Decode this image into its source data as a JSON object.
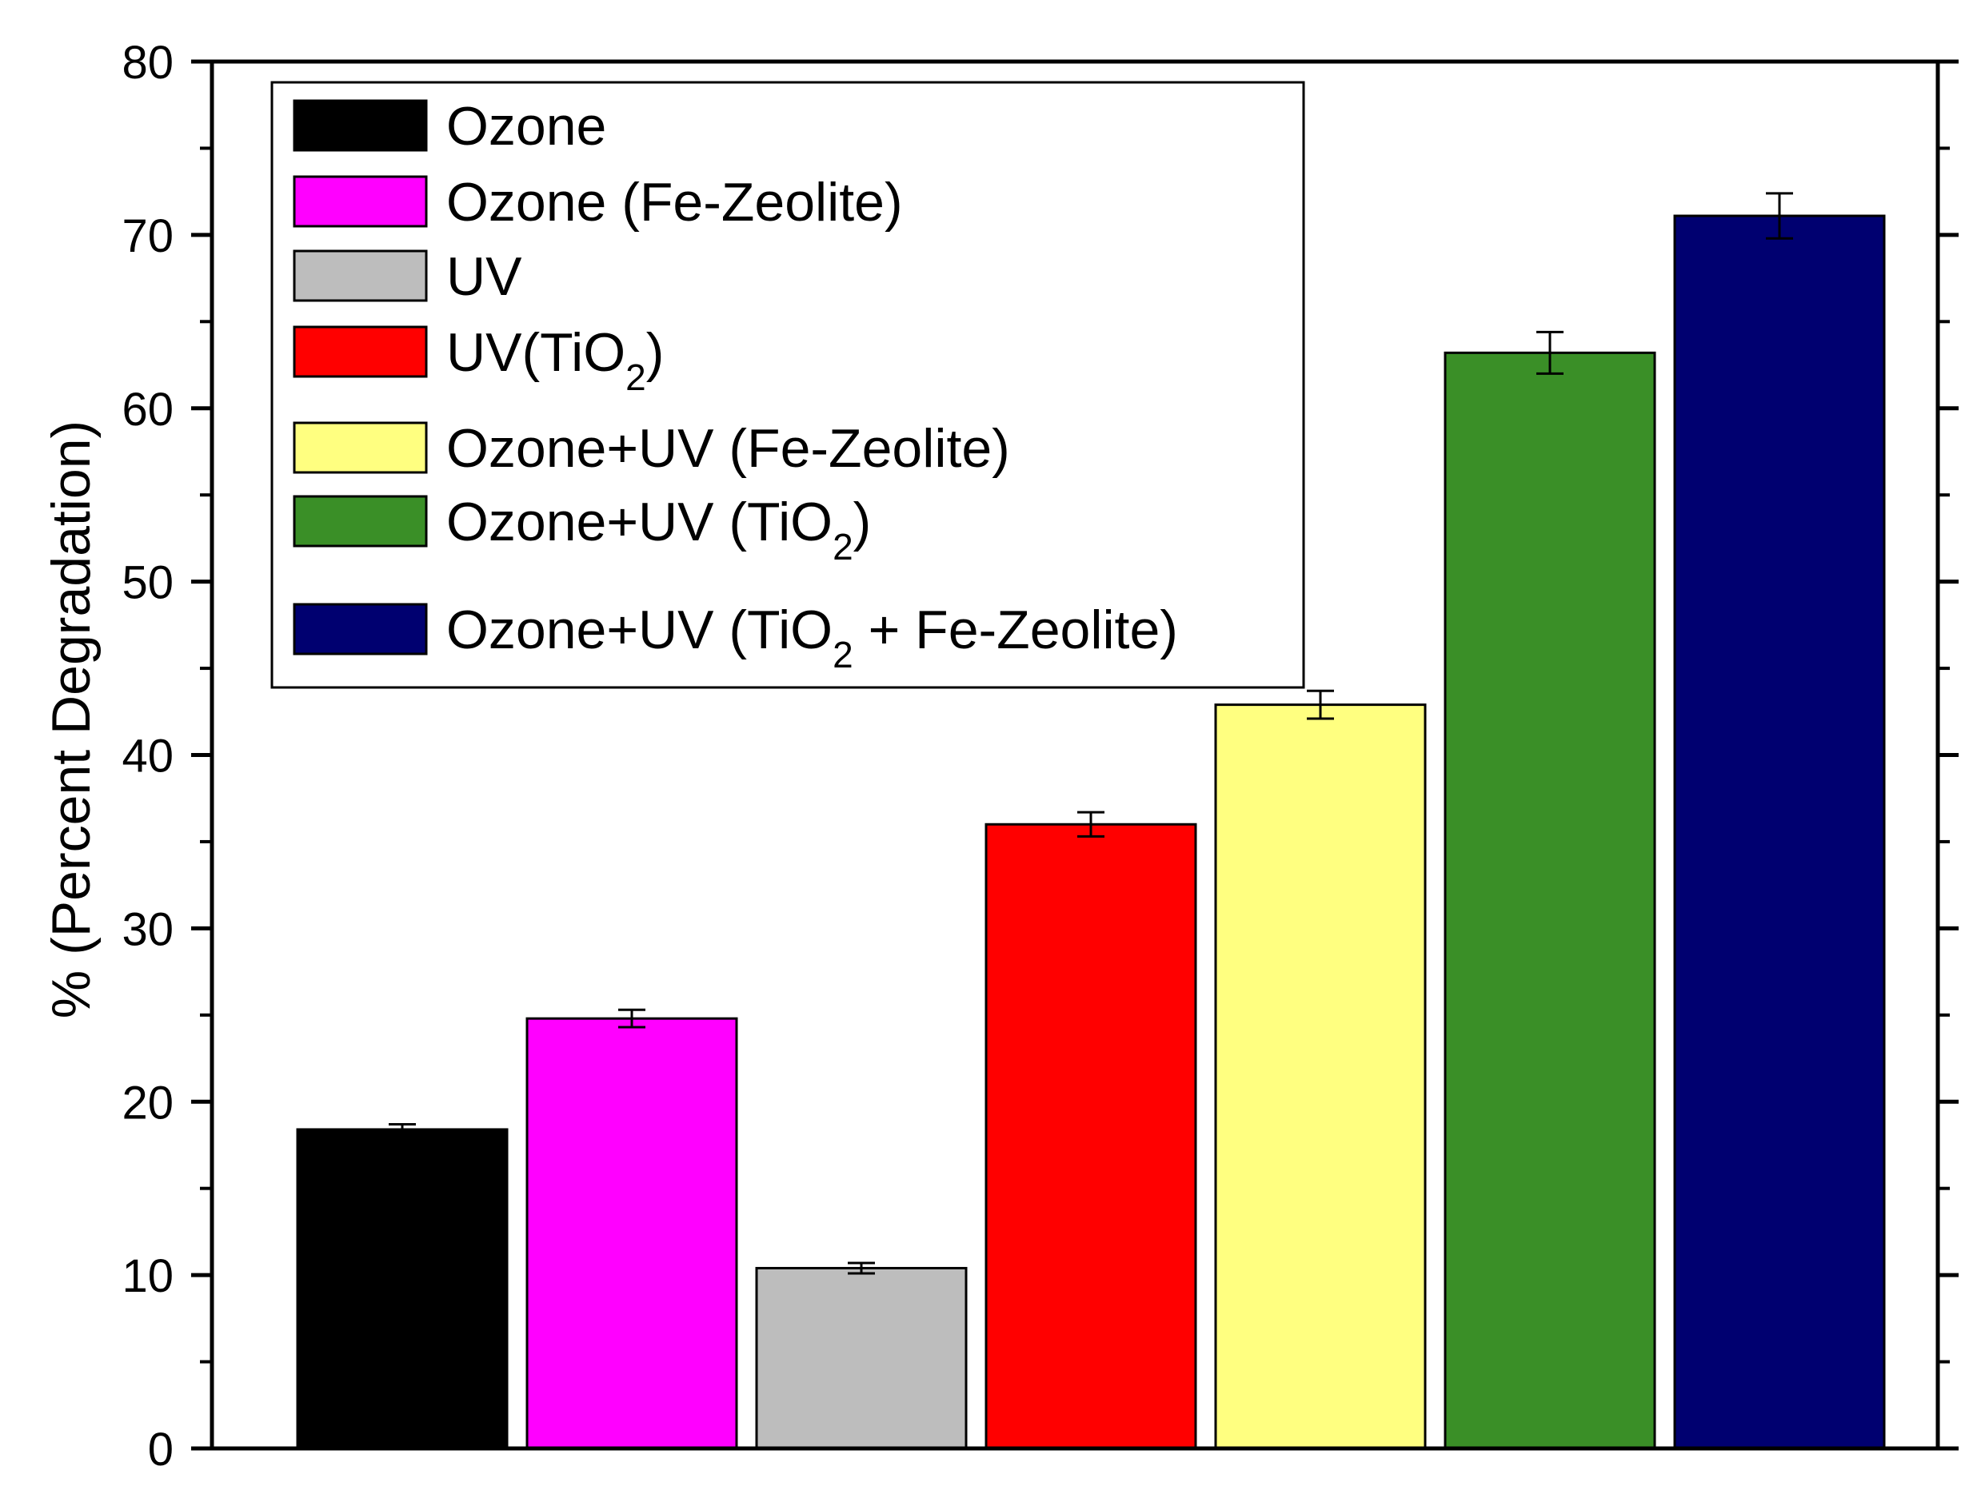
{
  "chart_data": {
    "type": "bar",
    "title": "",
    "xlabel": "",
    "ylabel": "% (Percent Degradation)",
    "ylim": [
      0,
      80
    ],
    "yticks": [
      0,
      10,
      20,
      30,
      40,
      50,
      60,
      70,
      80
    ],
    "grid": false,
    "legend_position": "top-left",
    "series": [
      {
        "name": "Ozone",
        "value": 18.4,
        "error": 0.3,
        "color": "#000000"
      },
      {
        "name": "Ozone (Fe-Zeolite)",
        "value": 24.8,
        "error": 0.5,
        "color": "#ff00ff"
      },
      {
        "name": "UV",
        "value": 10.4,
        "error": 0.3,
        "color": "#bdbdbd"
      },
      {
        "name": "UV(TiO2)",
        "value": 36.0,
        "error": 0.7,
        "color": "#ff0000"
      },
      {
        "name": "Ozone+UV (Fe-Zeolite)",
        "value": 42.9,
        "error": 0.8,
        "color": "#ffff80"
      },
      {
        "name": "Ozone+UV (TiO2)",
        "value": 63.2,
        "error": 1.2,
        "color": "#3a8f27"
      },
      {
        "name": "Ozone+UV (TiO2 + Fe-Zeolite)",
        "value": 71.1,
        "error": 1.3,
        "color": "#000070"
      }
    ],
    "legend_entries": [
      {
        "text": "Ozone"
      },
      {
        "text": "Ozone (Fe-Zeolite)"
      },
      {
        "text": "UV"
      },
      {
        "text": "UV(TiO",
        "sub": "2",
        "tail": ")"
      },
      {
        "text": "Ozone+UV (Fe-Zeolite)"
      },
      {
        "text": "Ozone+UV (TiO",
        "sub": "2",
        "tail": ")"
      },
      {
        "text": "Ozone+UV (TiO",
        "sub": "2",
        "tail": " + Fe-Zeolite)"
      }
    ]
  }
}
